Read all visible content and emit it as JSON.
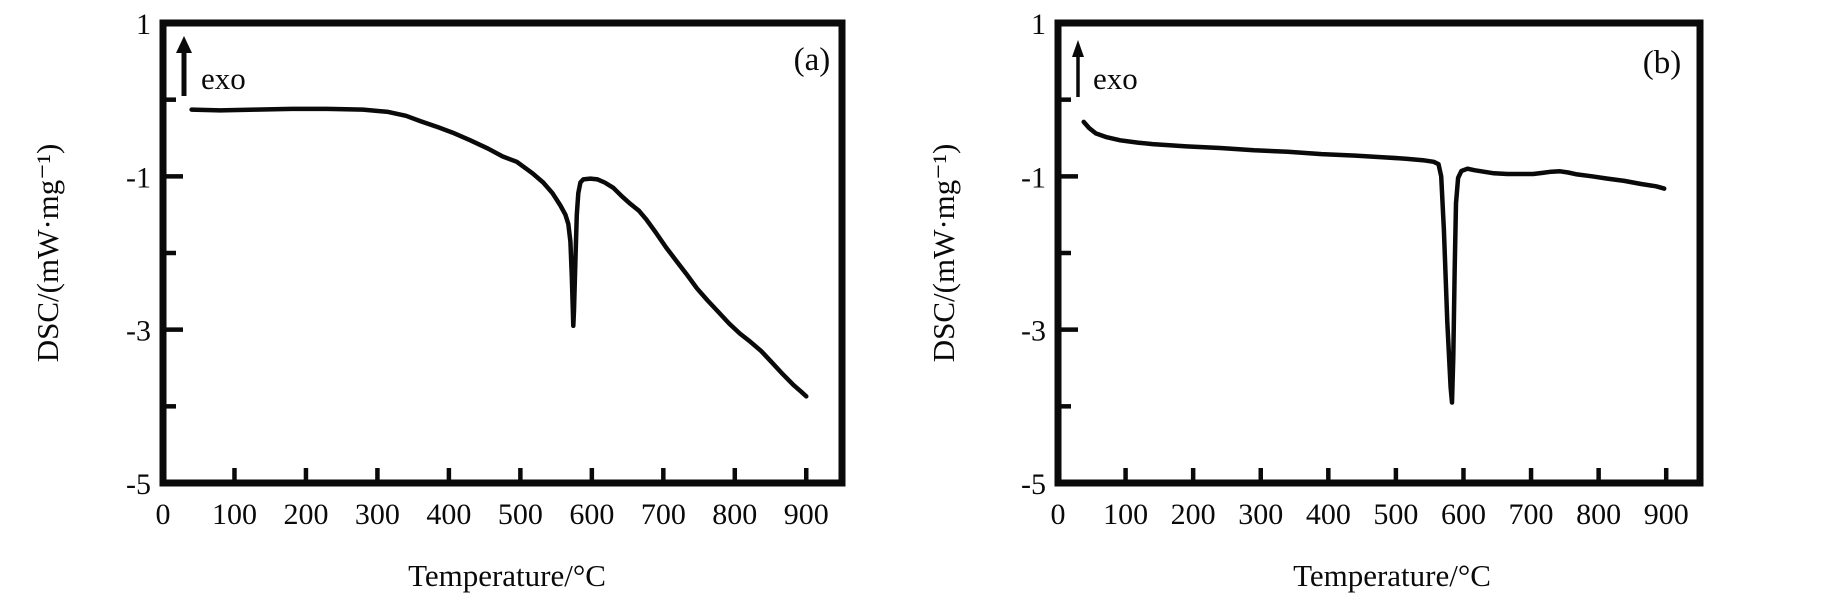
{
  "figure": {
    "background": "#ffffff",
    "ink_color": "#0a0a0a",
    "description": "Two DSC thermogram panels"
  },
  "chart_data": [
    {
      "type": "line",
      "panel_label": "(a)",
      "exo_label": "exo",
      "xlabel": "Temperature/°C",
      "ylabel": "DSC/(mW·mg⁻¹)",
      "xlim": [
        0,
        950
      ],
      "ylim": [
        -5,
        1
      ],
      "grid": false,
      "legend": "none",
      "x_ticks": [
        0,
        100,
        200,
        300,
        400,
        500,
        600,
        700,
        800,
        900
      ],
      "x_tick_labels": [
        "0",
        "100",
        "200",
        "300",
        "400",
        "500",
        "600",
        "700",
        "800",
        "900"
      ],
      "y_ticks_major": [
        1,
        -1,
        -3,
        -5
      ],
      "y_tick_labels": [
        "1",
        "-1",
        "-3",
        "-5"
      ],
      "y_ticks_minor": [
        0,
        -2,
        -4
      ],
      "series": [
        {
          "name": "DSC curve (a)",
          "points": [
            [
              40,
              -0.13
            ],
            [
              80,
              -0.14
            ],
            [
              130,
              -0.13
            ],
            [
              180,
              -0.12
            ],
            [
              230,
              -0.12
            ],
            [
              280,
              -0.13
            ],
            [
              315,
              -0.16
            ],
            [
              340,
              -0.21
            ],
            [
              360,
              -0.28
            ],
            [
              385,
              -0.36
            ],
            [
              405,
              -0.43
            ],
            [
              430,
              -0.53
            ],
            [
              455,
              -0.64
            ],
            [
              475,
              -0.74
            ],
            [
              495,
              -0.81
            ],
            [
              517,
              -0.96
            ],
            [
              532,
              -1.08
            ],
            [
              545,
              -1.22
            ],
            [
              556,
              -1.38
            ],
            [
              563,
              -1.5
            ],
            [
              567,
              -1.62
            ],
            [
              570,
              -1.85
            ],
            [
              572,
              -2.3
            ],
            [
              574,
              -2.95
            ],
            [
              575,
              -2.75
            ],
            [
              577,
              -2.1
            ],
            [
              579,
              -1.5
            ],
            [
              581,
              -1.22
            ],
            [
              584,
              -1.08
            ],
            [
              588,
              -1.04
            ],
            [
              598,
              -1.03
            ],
            [
              608,
              -1.04
            ],
            [
              618,
              -1.08
            ],
            [
              630,
              -1.15
            ],
            [
              642,
              -1.26
            ],
            [
              654,
              -1.36
            ],
            [
              666,
              -1.45
            ],
            [
              676,
              -1.56
            ],
            [
              690,
              -1.74
            ],
            [
              704,
              -1.93
            ],
            [
              718,
              -2.1
            ],
            [
              732,
              -2.27
            ],
            [
              747,
              -2.46
            ],
            [
              762,
              -2.62
            ],
            [
              777,
              -2.77
            ],
            [
              792,
              -2.92
            ],
            [
              807,
              -3.05
            ],
            [
              822,
              -3.16
            ],
            [
              837,
              -3.28
            ],
            [
              852,
              -3.43
            ],
            [
              867,
              -3.58
            ],
            [
              882,
              -3.72
            ],
            [
              893,
              -3.81
            ],
            [
              900,
              -3.87
            ]
          ]
        }
      ]
    },
    {
      "type": "line",
      "panel_label": "(b)",
      "exo_label": "exo",
      "xlabel": "Temperature/°C",
      "ylabel": "DSC/(mW·mg⁻¹)",
      "xlim": [
        0,
        950
      ],
      "ylim": [
        -5,
        1
      ],
      "grid": false,
      "legend": "none",
      "x_ticks": [
        0,
        100,
        200,
        300,
        400,
        500,
        600,
        700,
        800,
        900
      ],
      "x_tick_labels": [
        "0",
        "100",
        "200",
        "300",
        "400",
        "500",
        "600",
        "700",
        "800",
        "900"
      ],
      "y_ticks_major": [
        1,
        -1,
        -3,
        -5
      ],
      "y_tick_labels": [
        "1",
        "-1",
        "-3",
        "-5"
      ],
      "y_ticks_minor": [
        0,
        -2,
        -4
      ],
      "series": [
        {
          "name": "DSC curve (b)",
          "points": [
            [
              38,
              -0.29
            ],
            [
              46,
              -0.37
            ],
            [
              56,
              -0.44
            ],
            [
              72,
              -0.49
            ],
            [
              92,
              -0.53
            ],
            [
              118,
              -0.56
            ],
            [
              140,
              -0.58
            ],
            [
              190,
              -0.61
            ],
            [
              240,
              -0.63
            ],
            [
              290,
              -0.66
            ],
            [
              340,
              -0.68
            ],
            [
              390,
              -0.71
            ],
            [
              440,
              -0.73
            ],
            [
              480,
              -0.75
            ],
            [
              515,
              -0.77
            ],
            [
              540,
              -0.79
            ],
            [
              556,
              -0.81
            ],
            [
              563,
              -0.84
            ],
            [
              567,
              -1.0
            ],
            [
              571,
              -1.7
            ],
            [
              576,
              -2.9
            ],
            [
              581,
              -3.75
            ],
            [
              583,
              -3.95
            ],
            [
              585,
              -3.35
            ],
            [
              587,
              -2.2
            ],
            [
              589,
              -1.35
            ],
            [
              592,
              -1.02
            ],
            [
              597,
              -0.93
            ],
            [
              606,
              -0.9
            ],
            [
              616,
              -0.92
            ],
            [
              630,
              -0.94
            ],
            [
              645,
              -0.96
            ],
            [
              665,
              -0.97
            ],
            [
              685,
              -0.97
            ],
            [
              703,
              -0.97
            ],
            [
              717,
              -0.955
            ],
            [
              730,
              -0.94
            ],
            [
              743,
              -0.935
            ],
            [
              755,
              -0.95
            ],
            [
              768,
              -0.975
            ],
            [
              790,
              -1.0
            ],
            [
              813,
              -1.03
            ],
            [
              838,
              -1.06
            ],
            [
              863,
              -1.1
            ],
            [
              885,
              -1.13
            ],
            [
              897,
              -1.16
            ]
          ]
        }
      ]
    }
  ]
}
